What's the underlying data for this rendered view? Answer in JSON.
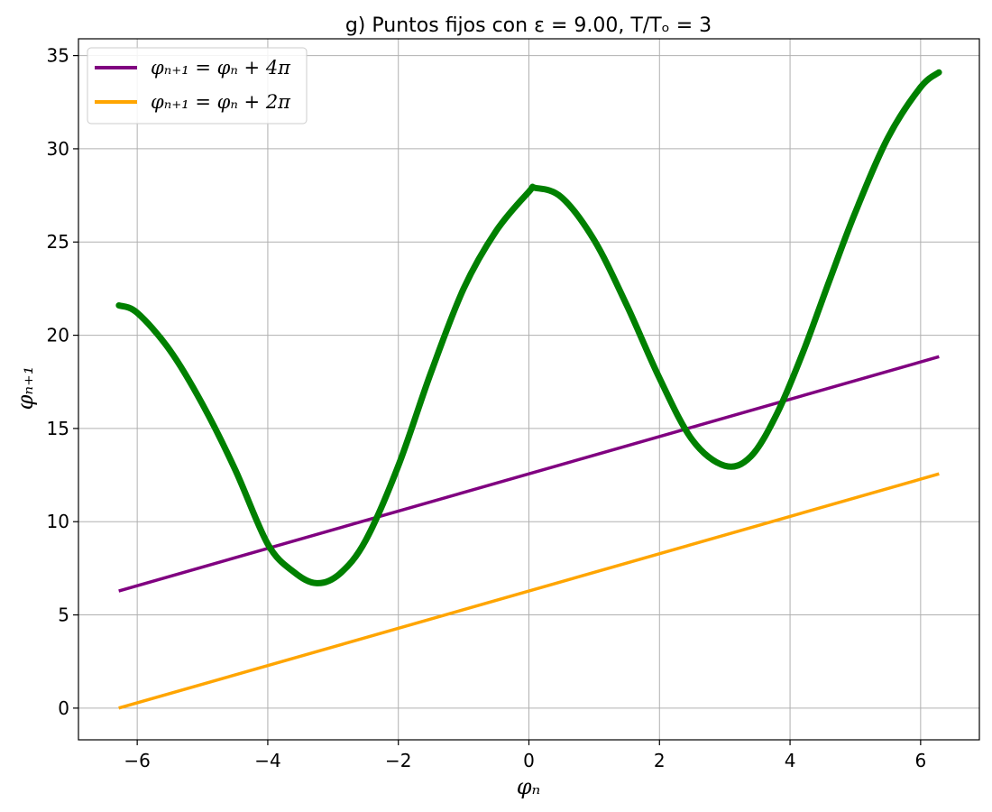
{
  "chart_data": {
    "type": "line",
    "title": "g) Puntos fijos con ε = 9.00, T/Tₒ = 3",
    "xlabel": "φₙ",
    "ylabel": "φₙ₊₁",
    "xlim": [
      -6.9,
      6.9
    ],
    "ylim": [
      -1.7,
      35.9
    ],
    "xticks": [
      -6,
      -4,
      -2,
      0,
      2,
      4,
      6
    ],
    "xtick_labels": [
      "−6",
      "−4",
      "−2",
      "0",
      "2",
      "4",
      "6"
    ],
    "yticks": [
      0,
      5,
      10,
      15,
      20,
      25,
      30,
      35
    ],
    "ytick_labels": [
      "0",
      "5",
      "10",
      "15",
      "20",
      "25",
      "30",
      "35"
    ],
    "grid": true,
    "legend_position": "top-left",
    "series": [
      {
        "name": "φₙ₊₁ = φₙ + 4π",
        "color": "#800080",
        "x": [
          -6.283,
          6.283
        ],
        "y": [
          6.283,
          18.85
        ]
      },
      {
        "name": "φₙ₊₁ = φₙ + 2π",
        "color": "#FFA500",
        "x": [
          -6.283,
          6.283
        ],
        "y": [
          0.0,
          12.566
        ]
      },
      {
        "name": "",
        "color": "#008000",
        "x": [
          -6.28,
          -6.0,
          -5.5,
          -5.0,
          -4.5,
          -4.0,
          -3.6,
          -3.25,
          -2.9,
          -2.5,
          -2.0,
          -1.5,
          -1.0,
          -0.5,
          0.0,
          0.1,
          0.5,
          1.0,
          1.5,
          2.0,
          2.5,
          3.0,
          3.4,
          3.8,
          4.2,
          4.6,
          5.0,
          5.5,
          6.0,
          6.28
        ],
        "y": [
          21.6,
          21.2,
          19.2,
          16.3,
          12.8,
          8.8,
          7.3,
          6.7,
          7.2,
          9.0,
          13.0,
          18.0,
          22.5,
          25.6,
          27.7,
          27.9,
          27.4,
          25.1,
          21.6,
          17.7,
          14.4,
          13.0,
          13.5,
          15.8,
          19.1,
          22.9,
          26.6,
          30.6,
          33.3,
          34.1
        ]
      }
    ]
  }
}
